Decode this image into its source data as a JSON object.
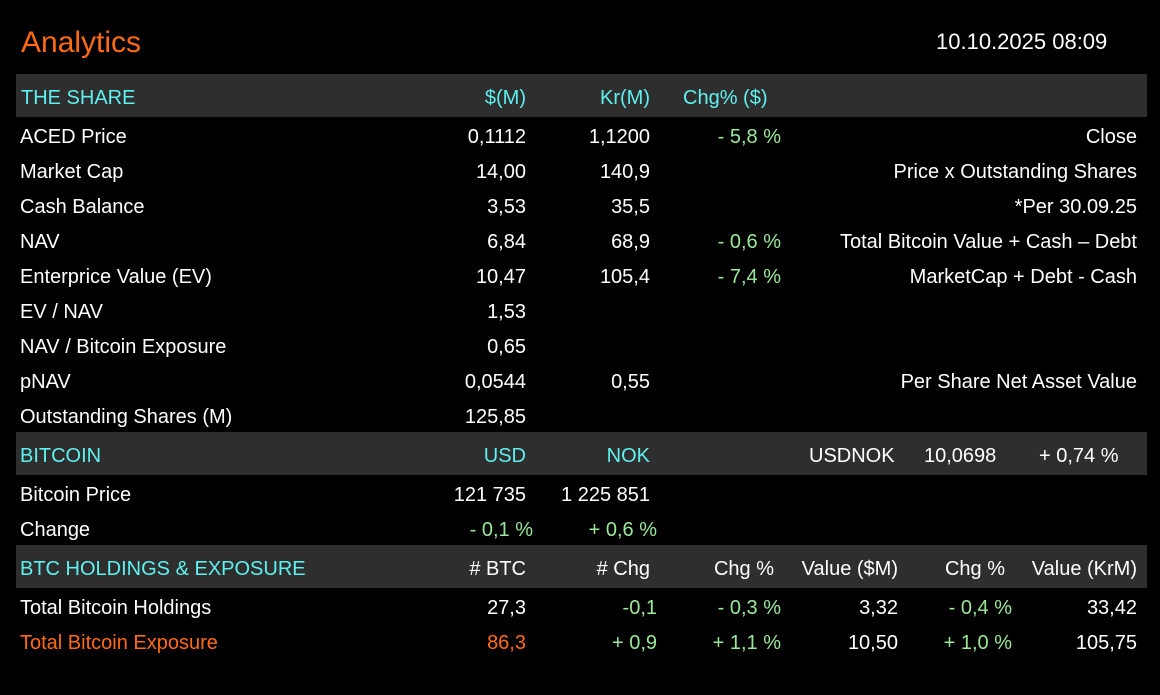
{
  "header": {
    "title": "Analytics",
    "datetime": "10.10.2025 08:09"
  },
  "share": {
    "heading": "THE SHARE",
    "col_usd": "$(M)",
    "col_nok": "Kr(M)",
    "col_chg": "Chg% ($)",
    "rows": [
      {
        "label": "ACED Price",
        "usd": "0,1112",
        "nok": "1,1200",
        "chg": "- 5,8 %",
        "note": "Close"
      },
      {
        "label": "Market Cap",
        "usd": "14,00",
        "nok": "140,9",
        "chg": "",
        "note": "Price x Outstanding Shares"
      },
      {
        "label": "Cash Balance",
        "usd": "3,53",
        "nok": "35,5",
        "chg": "",
        "note": "*Per 30.09.25"
      },
      {
        "label": "NAV",
        "usd": "6,84",
        "nok": "68,9",
        "chg": "- 0,6 %",
        "note": "Total Bitcoin Value + Cash – Debt"
      },
      {
        "label": "Enterprice Value (EV)",
        "usd": "10,47",
        "nok": "105,4",
        "chg": "- 7,4 %",
        "note": "MarketCap + Debt - Cash"
      },
      {
        "label": "EV / NAV",
        "usd": "1,53",
        "nok": "",
        "chg": "",
        "note": ""
      },
      {
        "label": "NAV / Bitcoin Exposure",
        "usd": "0,65",
        "nok": "",
        "chg": "",
        "note": ""
      },
      {
        "label": "pNAV",
        "usd": "0,0544",
        "nok": "0,55",
        "chg": "",
        "note": "Per Share Net Asset Value"
      },
      {
        "label": "Outstanding Shares (M)",
        "usd": "125,85",
        "nok": "",
        "chg": "",
        "note": ""
      }
    ]
  },
  "bitcoin": {
    "heading": "BITCOIN",
    "col_usd": "USD",
    "col_nok": "NOK",
    "fx_label": "USDNOK",
    "fx_value": "10,0698",
    "fx_change": "+ 0,74 %",
    "price_label": "Bitcoin Price",
    "price_usd": "121 735",
    "price_nok": "1 225 851",
    "change_label": "Change",
    "change_usd": "- 0,1 %",
    "change_nok": "+ 0,6 %"
  },
  "holdings": {
    "heading": "BTC HOLDINGS & EXPOSURE",
    "col_btc": "# BTC",
    "col_chg": "# Chg",
    "col_chg_pct": "Chg %",
    "col_value_usd": "Value ($M)",
    "col_chg_pct2": "Chg %",
    "col_value_nok": "Value (KrM)",
    "rows": [
      {
        "label": "Total Bitcoin Holdings",
        "btc": "27,3",
        "chg": "-0,1",
        "chg_pct": "- 0,3 %",
        "value_usd": "3,32",
        "chg_pct2": "- 0,4 %",
        "value_nok": "33,42"
      },
      {
        "label": "Total Bitcoin Exposure",
        "btc": "86,3",
        "chg": "+ 0,9",
        "chg_pct": "+ 1,1 %",
        "value_usd": "10,50",
        "chg_pct2": "+ 1,0 %",
        "value_nok": "105,75"
      }
    ]
  },
  "colors": {
    "accent": "#ff6a13",
    "heading": "#5ff0f0",
    "positive_negative": "#9be89b",
    "band": "#2e2e2e",
    "background": "#000000"
  }
}
